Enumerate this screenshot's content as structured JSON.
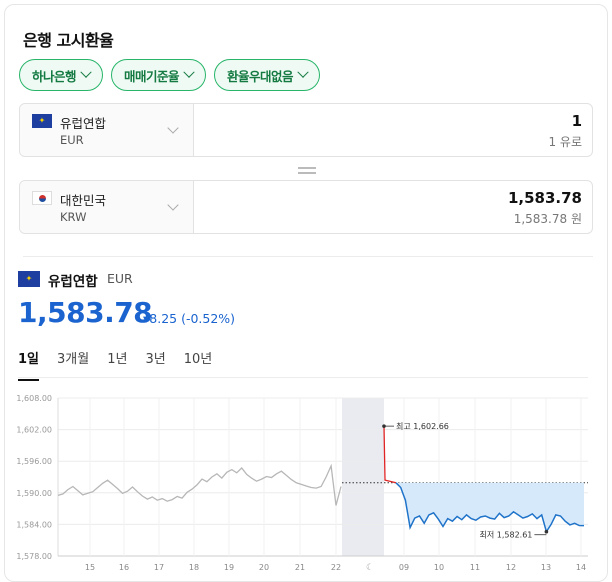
{
  "header": {
    "title": "은행 고시환율"
  },
  "filters": [
    {
      "label": "하나은행"
    },
    {
      "label": "매매기준율"
    },
    {
      "label": "환율우대없음"
    }
  ],
  "from_currency": {
    "name": "유럽연합",
    "code": "EUR",
    "amount": "1",
    "amount_text": "1 유로",
    "flag": "eu-flag-icon"
  },
  "to_currency": {
    "name": "대한민국",
    "code": "KRW",
    "amount": "1,583.78",
    "amount_text": "1,583.78 원",
    "flag": "kr-flag-icon"
  },
  "summary": {
    "name": "유럽연합",
    "code": "EUR",
    "rate": "1,583.78",
    "change": "▾8.25 (-0.52%)",
    "change_color": "#1b64d0"
  },
  "period_tabs": [
    {
      "label": "1일",
      "active": true
    },
    {
      "label": "3개월",
      "active": false
    },
    {
      "label": "1년",
      "active": false
    },
    {
      "label": "3년",
      "active": false
    },
    {
      "label": "10년",
      "active": false
    }
  ],
  "chart_data": {
    "type": "line",
    "y_ticks": [
      "1,608.00",
      "1,602.00",
      "1,596.00",
      "1,590.00",
      "1,584.00",
      "1,578.00"
    ],
    "ylim": [
      1578,
      1608
    ],
    "x_ticks": [
      "15",
      "16",
      "17",
      "18",
      "19",
      "20",
      "21",
      "22",
      "09",
      "10",
      "11",
      "12",
      "13",
      "14"
    ],
    "annotations": {
      "high": "최고 1,602.66",
      "low": "최저 1,582.61"
    },
    "reference_value": 1591.9,
    "series": [
      {
        "segment": "history",
        "values": [
          1589.5,
          1589.8,
          1590.6,
          1591.2,
          1590.4,
          1589.6,
          1589.9,
          1590.2,
          1591.0,
          1591.8,
          1592.4,
          1591.6,
          1590.8,
          1589.9,
          1590.3,
          1591.1,
          1590.2,
          1589.4,
          1588.8,
          1589.2,
          1588.6,
          1588.9,
          1588.4,
          1588.7,
          1589.3,
          1589.0,
          1590.1,
          1590.7,
          1591.5,
          1592.6,
          1592.1,
          1593.0,
          1593.6,
          1592.8,
          1593.9,
          1594.4,
          1593.8,
          1594.7,
          1593.5,
          1592.8,
          1592.2,
          1592.6,
          1593.1,
          1592.9,
          1593.6,
          1594.1,
          1593.3,
          1592.5,
          1591.9,
          1591.6,
          1591.3,
          1591.0,
          1590.9,
          1591.2,
          1593.0,
          1595.1,
          1587.6,
          1591.2
        ]
      },
      {
        "segment": "today",
        "values": [
          1602.66,
          1592.4,
          1591.9,
          1591.0,
          1588.6,
          1583.4,
          1585.2,
          1585.6,
          1584.2,
          1585.8,
          1586.2,
          1585.0,
          1583.6,
          1585.1,
          1584.6,
          1585.5,
          1584.9,
          1585.8,
          1585.1,
          1584.8,
          1585.4,
          1585.6,
          1585.2,
          1585.0,
          1586.1,
          1585.3,
          1585.6,
          1586.4,
          1585.8,
          1585.2,
          1585.5,
          1586.0,
          1585.1,
          1585.8,
          1582.61,
          1584.0,
          1585.8,
          1585.6,
          1584.6,
          1583.9,
          1584.2,
          1583.8,
          1583.78
        ]
      }
    ]
  }
}
